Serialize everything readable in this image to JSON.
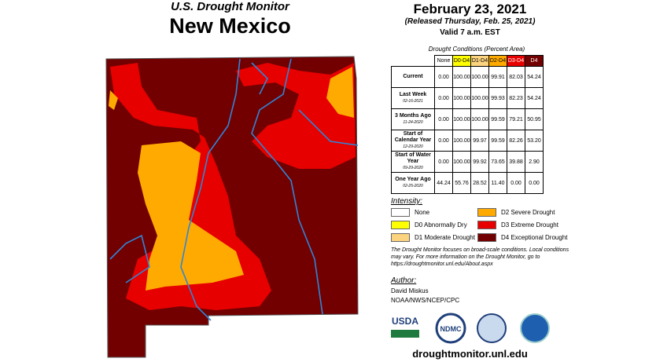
{
  "header": {
    "subtitle": "U.S. Drought Monitor",
    "title": "New Mexico",
    "date": "February 23, 2021",
    "released": "(Released Thursday, Feb. 25, 2021)",
    "valid": "Valid 7 a.m. EST"
  },
  "table": {
    "caption": "Drought Conditions (Percent Area)",
    "columns": [
      {
        "label": "None",
        "color": "#ffffff",
        "text_color": "#000000"
      },
      {
        "label": "D0-D4",
        "color": "#ffff00",
        "text_color": "#000000"
      },
      {
        "label": "D1-D4",
        "color": "#fcd37f",
        "text_color": "#000000"
      },
      {
        "label": "D2-D4",
        "color": "#ffaa00",
        "text_color": "#000000"
      },
      {
        "label": "D3-D4",
        "color": "#e60000",
        "text_color": "#ffffff"
      },
      {
        "label": "D4",
        "color": "#730000",
        "text_color": "#ffffff"
      }
    ],
    "rows": [
      {
        "label": "Current",
        "values": [
          "0.00",
          "100.00",
          "100.00",
          "99.91",
          "82.03",
          "54.24"
        ]
      },
      {
        "label": "Last Week",
        "date": "02-16-2021",
        "values": [
          "0.00",
          "100.00",
          "100.00",
          "99.93",
          "82.23",
          "54.24"
        ]
      },
      {
        "label": "3 Months Ago",
        "date": "11-24-2020",
        "values": [
          "0.00",
          "100.00",
          "100.00",
          "99.59",
          "79.21",
          "50.95"
        ]
      },
      {
        "label": "Start of Calendar Year",
        "date": "12-29-2020",
        "values": [
          "0.00",
          "100.00",
          "99.97",
          "99.59",
          "82.26",
          "53.20"
        ]
      },
      {
        "label": "Start of Water Year",
        "date": "09-29-2020",
        "values": [
          "0.00",
          "100.00",
          "99.92",
          "73.65",
          "39.88",
          "2.90"
        ]
      },
      {
        "label": "One Year Ago",
        "date": "02-25-2020",
        "values": [
          "44.24",
          "55.76",
          "28.52",
          "11.40",
          "0.00",
          "0.00"
        ]
      }
    ]
  },
  "legend": {
    "title": "Intensity:",
    "items": [
      {
        "label": "None",
        "color": "#ffffff"
      },
      {
        "label": "D2 Severe Drought",
        "color": "#ffaa00"
      },
      {
        "label": "D0 Abnormally Dry",
        "color": "#ffff00"
      },
      {
        "label": "D3 Extreme Drought",
        "color": "#e60000"
      },
      {
        "label": "D1 Moderate Drought",
        "color": "#fcd37f"
      },
      {
        "label": "D4 Exceptional Drought",
        "color": "#730000"
      }
    ]
  },
  "note": "The Drought Monitor focuses on broad-scale conditions. Local conditions may vary. For more information on the Drought Monitor, go to https://droughtmonitor.unl.edu/About.aspx",
  "author": {
    "heading": "Author:",
    "name": "David Miskus",
    "org": "NOAA/NWS/NCEP/CPC"
  },
  "logos": [
    "USDA",
    "NDMC"
  ],
  "url": "droughtmonitor.unl.edu"
}
